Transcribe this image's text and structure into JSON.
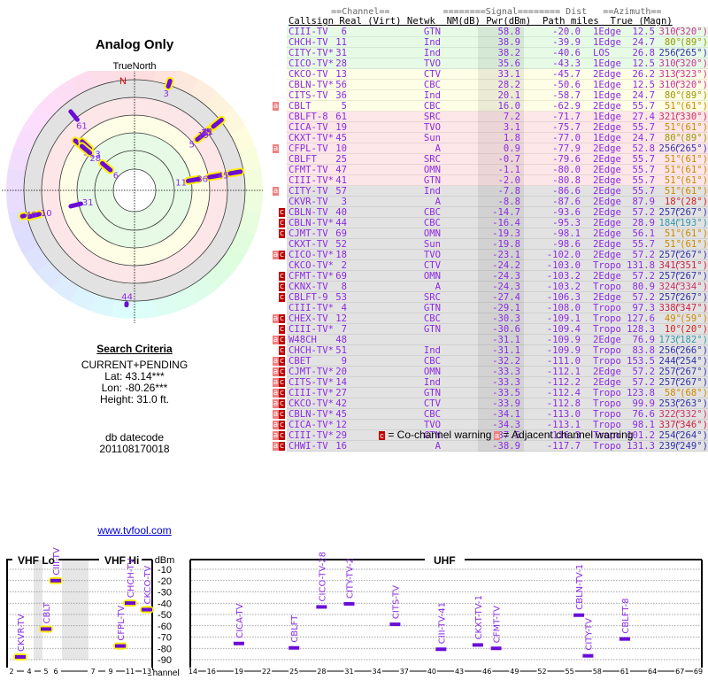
{
  "polar": {
    "title": "Analog Only",
    "north_label": "TrueNorth",
    "compass_label": "N",
    "stations": [
      {
        "ch": "3",
        "az": 18,
        "nm": -8.8,
        "outline": true
      },
      {
        "ch": "61",
        "az": 321,
        "nm": 7.2,
        "outline": false
      },
      {
        "ch": "56",
        "az": 310,
        "nm": 28.2,
        "outline": true
      },
      {
        "ch": "13",
        "az": 313,
        "nm": 33.1,
        "outline": true
      },
      {
        "ch": "28",
        "az": 310,
        "nm": 35.6,
        "outline": true
      },
      {
        "ch": "6",
        "az": 310,
        "nm": 58.8,
        "outline": true
      },
      {
        "ch": "5",
        "az": 51,
        "nm": 16.0,
        "outline": true
      },
      {
        "ch": "19",
        "az": 51,
        "nm": 3.1,
        "outline": true
      },
      {
        "ch": "25",
        "az": 51,
        "nm": -0.7,
        "outline": true
      },
      {
        "ch": "47",
        "az": 51,
        "nm": -1.1,
        "outline": true
      },
      {
        "ch": "41",
        "az": 51,
        "nm": -2.0,
        "outline": true
      },
      {
        "ch": "11",
        "az": 80,
        "nm": 38.9,
        "outline": true
      },
      {
        "ch": "36",
        "az": 80,
        "nm": 20.1,
        "outline": true
      },
      {
        "ch": "45",
        "az": 80,
        "nm": 1.8,
        "outline": true
      },
      {
        "ch": "31",
        "az": 256,
        "nm": 38.2,
        "outline": false
      },
      {
        "ch": "10",
        "az": 256,
        "nm": 0.9,
        "outline": true
      },
      {
        "ch": "40",
        "az": 257,
        "nm": -14.7,
        "outline": true
      },
      {
        "ch": "44",
        "az": 184,
        "nm": -16.4,
        "outline": false
      }
    ]
  },
  "criteria": {
    "heading": "Search Criteria",
    "mode": "CURRENT+PENDING",
    "lat": "Lat: 43.14***",
    "lon": "Lon: -80.26***",
    "height": "Height: 31.0 ft."
  },
  "db": {
    "label": "db datecode",
    "value": "201108170018"
  },
  "site_link": "www.tvfool.com",
  "table": {
    "group_header": "        ==Channel==          ========Signal======== Dist   ==Azimuth==",
    "col_header": "Callsign Real (Virt) Netwk  NM(dB) Pwr(dBm)  Path miles  True (Magn)",
    "rows": [
      {
        "cs": "CIII-TV",
        "real": "6",
        "virt": "",
        "net": "GTN",
        "nm": "58.8",
        "pwr": "-20.0",
        "path": "1Edge",
        "dist": "12.5",
        "true": "310°",
        "magn": "(320°)",
        "band": "green",
        "azc": "#cc3399",
        "warn": ""
      },
      {
        "cs": "CHCH-TV",
        "real": "11",
        "virt": "",
        "net": "Ind",
        "nm": "38.9",
        "pwr": "-39.9",
        "path": "1Edge",
        "dist": "24.7",
        "true": "80°",
        "magn": "(89°)",
        "band": "green",
        "azc": "#999900",
        "warn": ""
      },
      {
        "cs": "CITY-TV*",
        "real": "31",
        "virt": "",
        "net": "Ind",
        "nm": "38.2",
        "pwr": "-40.6",
        "path": "LOS",
        "dist": "26.8",
        "true": "256°",
        "magn": "(265°)",
        "band": "green",
        "azc": "#3333aa",
        "warn": ""
      },
      {
        "cs": "CICO-TV*",
        "real": "28",
        "virt": "",
        "net": "TVO",
        "nm": "35.6",
        "pwr": "-43.3",
        "path": "1Edge",
        "dist": "12.5",
        "true": "310°",
        "magn": "(320°)",
        "band": "green",
        "azc": "#cc3399",
        "warn": ""
      },
      {
        "cs": "CKCO-TV",
        "real": "13",
        "virt": "",
        "net": "CTV",
        "nm": "33.1",
        "pwr": "-45.7",
        "path": "2Edge",
        "dist": "26.2",
        "true": "313°",
        "magn": "(323°)",
        "band": "yellow",
        "azc": "#cc3399",
        "warn": ""
      },
      {
        "cs": "CBLN-TV*",
        "real": "56",
        "virt": "",
        "net": "CBC",
        "nm": "28.2",
        "pwr": "-50.6",
        "path": "1Edge",
        "dist": "12.5",
        "true": "310°",
        "magn": "(320°)",
        "band": "yellow",
        "azc": "#cc3399",
        "warn": ""
      },
      {
        "cs": "CITS-TV",
        "real": "36",
        "virt": "",
        "net": "Ind",
        "nm": "20.1",
        "pwr": "-58.7",
        "path": "1Edge",
        "dist": "24.7",
        "true": "80°",
        "magn": "(89°)",
        "band": "yellow",
        "azc": "#999900",
        "warn": ""
      },
      {
        "cs": "CBLT",
        "real": "5",
        "virt": "",
        "net": "CBC",
        "nm": "16.0",
        "pwr": "-62.9",
        "path": "2Edge",
        "dist": "55.7",
        "true": "51°",
        "magn": "(61°)",
        "band": "yellow",
        "azc": "#cc8800",
        "warn": "a"
      },
      {
        "cs": "CBLFT-8",
        "real": "61",
        "virt": "",
        "net": "SRC",
        "nm": "7.2",
        "pwr": "-71.7",
        "path": "1Edge",
        "dist": "27.4",
        "true": "321°",
        "magn": "(330°)",
        "band": "pink",
        "azc": "#cc3366",
        "warn": ""
      },
      {
        "cs": "CICA-TV",
        "real": "19",
        "virt": "",
        "net": "TVO",
        "nm": "3.1",
        "pwr": "-75.7",
        "path": "2Edge",
        "dist": "55.7",
        "true": "51°",
        "magn": "(61°)",
        "band": "pink",
        "azc": "#cc8800",
        "warn": ""
      },
      {
        "cs": "CKXT-TV*",
        "real": "45",
        "virt": "",
        "net": "Sun",
        "nm": "1.8",
        "pwr": "-77.0",
        "path": "1Edge",
        "dist": "24.7",
        "true": "80°",
        "magn": "(89°)",
        "band": "pink",
        "azc": "#999900",
        "warn": ""
      },
      {
        "cs": "CFPL-TV",
        "real": "10",
        "virt": "",
        "net": "A",
        "nm": "0.9",
        "pwr": "-77.9",
        "path": "2Edge",
        "dist": "52.8",
        "true": "256°",
        "magn": "(265°)",
        "band": "pink",
        "azc": "#3333aa",
        "warn": "a"
      },
      {
        "cs": "CBLFT",
        "real": "25",
        "virt": "",
        "net": "SRC",
        "nm": "-0.7",
        "pwr": "-79.6",
        "path": "2Edge",
        "dist": "55.7",
        "true": "51°",
        "magn": "(61°)",
        "band": "pink",
        "azc": "#cc8800",
        "warn": ""
      },
      {
        "cs": "CFMT-TV",
        "real": "47",
        "virt": "",
        "net": "OMN",
        "nm": "-1.1",
        "pwr": "-80.0",
        "path": "2Edge",
        "dist": "55.7",
        "true": "51°",
        "magn": "(61°)",
        "band": "pink",
        "azc": "#cc8800",
        "warn": ""
      },
      {
        "cs": "CIII-TV*",
        "real": "41",
        "virt": "",
        "net": "GTN",
        "nm": "-2.0",
        "pwr": "-80.8",
        "path": "2Edge",
        "dist": "55.7",
        "true": "51°",
        "magn": "(61°)",
        "band": "pink",
        "azc": "#cc8800",
        "warn": ""
      },
      {
        "cs": "CITY-TV",
        "real": "57",
        "virt": "",
        "net": "Ind",
        "nm": "-7.8",
        "pwr": "-86.6",
        "path": "2Edge",
        "dist": "55.7",
        "true": "51°",
        "magn": "(61°)",
        "band": "grey",
        "azc": "#cc8800",
        "warn": "a"
      },
      {
        "cs": "CKVR-TV",
        "real": "3",
        "virt": "",
        "net": "A",
        "nm": "-8.8",
        "pwr": "-87.6",
        "path": "2Edge",
        "dist": "87.9",
        "true": "18°",
        "magn": "(28°)",
        "band": "grey",
        "azc": "#cc2222",
        "warn": ""
      },
      {
        "cs": "CBLN-TV",
        "real": "40",
        "virt": "",
        "net": "CBC",
        "nm": "-14.7",
        "pwr": "-93.6",
        "path": "2Edge",
        "dist": "57.2",
        "true": "257°",
        "magn": "(267°)",
        "band": "grey",
        "azc": "#3333aa",
        "warn": "c"
      },
      {
        "cs": "CBLN-TV*",
        "real": "44",
        "virt": "",
        "net": "CBC",
        "nm": "-16.4",
        "pwr": "-95.3",
        "path": "2Edge",
        "dist": "28.9",
        "true": "184°",
        "magn": "(193°)",
        "band": "grey",
        "azc": "#3399aa",
        "warn": "c"
      },
      {
        "cs": "CJMT-TV",
        "real": "69",
        "virt": "",
        "net": "OMN",
        "nm": "-19.3",
        "pwr": "-98.1",
        "path": "2Edge",
        "dist": "56.1",
        "true": "51°",
        "magn": "(61°)",
        "band": "grey",
        "azc": "#cc8800",
        "warn": "c"
      },
      {
        "cs": "CKXT-TV",
        "real": "52",
        "virt": "",
        "net": "Sun",
        "nm": "-19.8",
        "pwr": "-98.6",
        "path": "2Edge",
        "dist": "55.7",
        "true": "51°",
        "magn": "(61°)",
        "band": "grey",
        "azc": "#cc8800",
        "warn": ""
      },
      {
        "cs": "CICO-TV*",
        "real": "18",
        "virt": "",
        "net": "TVO",
        "nm": "-23.1",
        "pwr": "-102.0",
        "path": "2Edge",
        "dist": "57.2",
        "true": "257°",
        "magn": "(267°)",
        "band": "grey",
        "azc": "#3333aa",
        "warn": "ac"
      },
      {
        "cs": "CKCO-TV*",
        "real": "2",
        "virt": "",
        "net": "CTV",
        "nm": "-24.2",
        "pwr": "-103.0",
        "path": "Tropo",
        "dist": "131.8",
        "true": "341°",
        "magn": "(351°)",
        "band": "grey",
        "azc": "#cc2244",
        "warn": ""
      },
      {
        "cs": "CFMT-TV*",
        "real": "69",
        "virt": "",
        "net": "OMN",
        "nm": "-24.3",
        "pwr": "-103.2",
        "path": "2Edge",
        "dist": "57.2",
        "true": "257°",
        "magn": "(267°)",
        "band": "grey",
        "azc": "#3333aa",
        "warn": "c"
      },
      {
        "cs": "CKNX-TV",
        "real": "8",
        "virt": "",
        "net": "A",
        "nm": "-24.3",
        "pwr": "-103.2",
        "path": "Tropo",
        "dist": "80.9",
        "true": "324°",
        "magn": "(334°)",
        "band": "grey",
        "azc": "#cc3366",
        "warn": "c"
      },
      {
        "cs": "CBLFT-9",
        "real": "53",
        "virt": "",
        "net": "SRC",
        "nm": "-27.4",
        "pwr": "-106.3",
        "path": "2Edge",
        "dist": "57.2",
        "true": "257°",
        "magn": "(267°)",
        "band": "grey",
        "azc": "#3333aa",
        "warn": "c"
      },
      {
        "cs": "CIII-TV*",
        "real": "4",
        "virt": "",
        "net": "GTN",
        "nm": "-29.1",
        "pwr": "-108.0",
        "path": "Tropo",
        "dist": "97.3",
        "true": "338°",
        "magn": "(347°)",
        "band": "grey",
        "azc": "#cc2244",
        "warn": ""
      },
      {
        "cs": "CHEX-TV",
        "real": "12",
        "virt": "",
        "net": "CBC",
        "nm": "-30.3",
        "pwr": "-109.1",
        "path": "Tropo",
        "dist": "127.6",
        "true": "49°",
        "magn": "(59°)",
        "band": "grey",
        "azc": "#cc8800",
        "warn": "ac"
      },
      {
        "cs": "CIII-TV*",
        "real": "7",
        "virt": "",
        "net": "GTN",
        "nm": "-30.6",
        "pwr": "-109.4",
        "path": "Tropo",
        "dist": "128.3",
        "true": "10°",
        "magn": "(20°)",
        "band": "grey",
        "azc": "#cc2222",
        "warn": "c"
      },
      {
        "cs": "W48CH",
        "real": "48",
        "virt": "",
        "net": "",
        "nm": "-31.1",
        "pwr": "-109.9",
        "path": "2Edge",
        "dist": "76.9",
        "true": "173°",
        "magn": "(182°)",
        "band": "grey",
        "azc": "#3399aa",
        "warn": "ac"
      },
      {
        "cs": "CHCH-TV*",
        "real": "51",
        "virt": "",
        "net": "Ind",
        "nm": "-31.1",
        "pwr": "-109.9",
        "path": "Tropo",
        "dist": "83.8",
        "true": "256°",
        "magn": "(266°)",
        "band": "grey",
        "azc": "#3333aa",
        "warn": "c"
      },
      {
        "cs": "CBET",
        "real": "9",
        "virt": "",
        "net": "CBC",
        "nm": "-32.2",
        "pwr": "-111.0",
        "path": "Tropo",
        "dist": "153.5",
        "true": "244°",
        "magn": "(254°)",
        "band": "grey",
        "azc": "#3333aa",
        "warn": "ac"
      },
      {
        "cs": "CJMT-TV*",
        "real": "20",
        "virt": "",
        "net": "OMN",
        "nm": "-33.3",
        "pwr": "-112.1",
        "path": "2Edge",
        "dist": "57.2",
        "true": "257°",
        "magn": "(267°)",
        "band": "grey",
        "azc": "#3333aa",
        "warn": "ac"
      },
      {
        "cs": "CITS-TV*",
        "real": "14",
        "virt": "",
        "net": "Ind",
        "nm": "-33.3",
        "pwr": "-112.2",
        "path": "2Edge",
        "dist": "57.2",
        "true": "257°",
        "magn": "(267°)",
        "band": "grey",
        "azc": "#3333aa",
        "warn": "ac"
      },
      {
        "cs": "CIII-TV*",
        "real": "27",
        "virt": "",
        "net": "GTN",
        "nm": "-33.5",
        "pwr": "-112.4",
        "path": "Tropo",
        "dist": "123.8",
        "true": "58°",
        "magn": "(68°)",
        "band": "grey",
        "azc": "#cc8800",
        "warn": "ac"
      },
      {
        "cs": "CKCO-TV*",
        "real": "42",
        "virt": "",
        "net": "CTV",
        "nm": "-33.9",
        "pwr": "-112.8",
        "path": "Tropo",
        "dist": "99.9",
        "true": "253°",
        "magn": "(263°)",
        "band": "grey",
        "azc": "#3333aa",
        "warn": "ac"
      },
      {
        "cs": "CBLN-TV*",
        "real": "45",
        "virt": "",
        "net": "CBC",
        "nm": "-34.1",
        "pwr": "-113.0",
        "path": "Tropo",
        "dist": "76.6",
        "true": "322°",
        "magn": "(332°)",
        "band": "grey",
        "azc": "#cc3366",
        "warn": "ac"
      },
      {
        "cs": "CICA-TV*",
        "real": "12",
        "virt": "",
        "net": "TVO",
        "nm": "-34.3",
        "pwr": "-113.1",
        "path": "Tropo",
        "dist": "98.1",
        "true": "337°",
        "magn": "(346°)",
        "band": "grey",
        "azc": "#cc2244",
        "warn": "ac"
      },
      {
        "cs": "CIII-TV*",
        "real": "29",
        "virt": "",
        "net": "GTN",
        "nm": "-37.5",
        "pwr": "-116.3",
        "path": "Tropo",
        "dist": "101.2",
        "true": "254°",
        "magn": "(264°)",
        "band": "grey",
        "azc": "#3333aa",
        "warn": "ac"
      },
      {
        "cs": "CHWI-TV",
        "real": "16",
        "virt": "",
        "net": "A",
        "nm": "-38.9",
        "pwr": "-117.7",
        "path": "Tropo",
        "dist": "131.3",
        "true": "239°",
        "magn": "(249°)",
        "band": "grey",
        "azc": "#3333aa",
        "warn": "ac"
      }
    ],
    "legend": {
      "co_badge": "c",
      "co_text": "= Co-channel warning",
      "adj_badge": "a",
      "adj_text": "= Adjacent channel warning"
    },
    "band_colors": {
      "green": "#e6fae6",
      "yellow": "#fefde6",
      "pink": "#fde6e8",
      "grey": "#e2e2e2"
    },
    "text_color": "#8a2be2"
  },
  "chart_data": {
    "type": "scatter",
    "title": "",
    "ylabel": "dBm",
    "xlabel": "Channel",
    "ylim": [
      -95,
      -5
    ],
    "yticks": [
      "-10",
      "-20",
      "-30",
      "-40",
      "-50",
      "-60",
      "-70",
      "-80",
      "-90"
    ],
    "sections": [
      {
        "label": "VHF Lo",
        "ticks": [
          "2",
          "4",
          "5",
          "6"
        ]
      },
      {
        "label": "VHF Hi",
        "ticks": [
          "7",
          "9",
          "11",
          "13"
        ]
      },
      {
        "label": "UHF",
        "ticks": [
          "14",
          "16",
          "19",
          "22",
          "25",
          "28",
          "31",
          "34",
          "37",
          "40",
          "43",
          "46",
          "49",
          "52",
          "55",
          "58",
          "61",
          "64",
          "67",
          "69"
        ]
      }
    ],
    "points": [
      {
        "label": "CKVR-TV",
        "ch": 3,
        "dbm": -87.6,
        "highlight": true
      },
      {
        "label": "CBLT",
        "ch": 5,
        "dbm": -62.9,
        "highlight": true
      },
      {
        "label": "CIII-TV",
        "ch": 6,
        "dbm": -20.0,
        "highlight": true
      },
      {
        "label": "CFPL-TV",
        "ch": 10,
        "dbm": -77.9,
        "highlight": true
      },
      {
        "label": "CHCH-TV",
        "ch": 11,
        "dbm": -39.9,
        "highlight": true
      },
      {
        "label": "CKCO-TV",
        "ch": 13,
        "dbm": -45.7,
        "highlight": true
      },
      {
        "label": "CICA-TV",
        "ch": 19,
        "dbm": -75.7,
        "highlight": false
      },
      {
        "label": "CBLFT",
        "ch": 25,
        "dbm": -79.6,
        "highlight": false
      },
      {
        "label": "CICO-TV-28",
        "ch": 28,
        "dbm": -43.3,
        "highlight": false
      },
      {
        "label": "CITY-TV-2",
        "ch": 31,
        "dbm": -40.6,
        "highlight": false
      },
      {
        "label": "CITS-TV",
        "ch": 36,
        "dbm": -58.7,
        "highlight": false
      },
      {
        "label": "CIII-TV-41",
        "ch": 41,
        "dbm": -80.8,
        "highlight": false
      },
      {
        "label": "CKXT-TV-1",
        "ch": 45,
        "dbm": -77.0,
        "highlight": false
      },
      {
        "label": "CFMT-TV",
        "ch": 47,
        "dbm": -80.0,
        "highlight": false
      },
      {
        "label": "CBLN-TV-1",
        "ch": 56,
        "dbm": -50.6,
        "highlight": false
      },
      {
        "label": "CITY-TV",
        "ch": 57,
        "dbm": -86.6,
        "highlight": false
      },
      {
        "label": "CBLFT-8",
        "ch": 61,
        "dbm": -71.7,
        "highlight": false
      }
    ],
    "grid": true
  }
}
